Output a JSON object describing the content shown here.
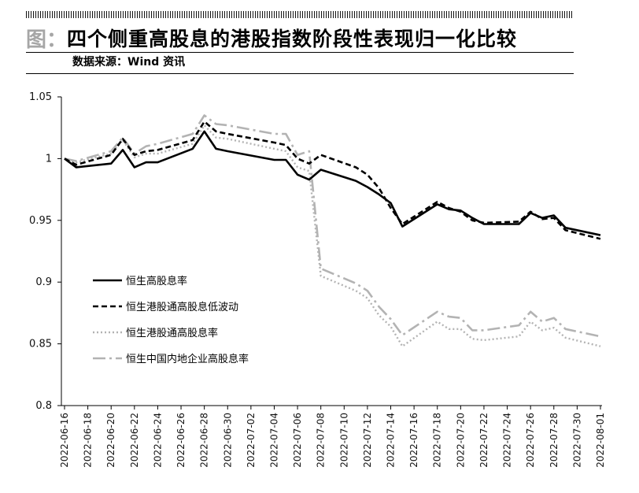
{
  "header": {
    "title_prefix": "图：",
    "title": "四个侧重高股息的港股指数阶段性表现归一化比较",
    "source": "数据来源：Wind 资讯"
  },
  "chart_data": {
    "type": "line",
    "title": "四个侧重高股息的港股指数阶段性表现归一化比较",
    "xlabel": "",
    "ylabel": "",
    "ylim": [
      0.8,
      1.05
    ],
    "yticks": [
      "1.05",
      "1",
      "0.95",
      "0.9",
      "0.85",
      "0.8"
    ],
    "ytick_values": [
      1.05,
      1.0,
      0.95,
      0.9,
      0.85,
      0.8
    ],
    "xticks": [
      "2022-06-16",
      "2022-06-18",
      "2022-06-20",
      "2022-06-22",
      "2022-06-24",
      "2022-06-26",
      "2022-06-28",
      "2022-06-30",
      "2022-07-02",
      "2022-07-04",
      "2022-07-06",
      "2022-07-08",
      "2022-07-10",
      "2022-07-12",
      "2022-07-14",
      "2022-07-16",
      "2022-07-18",
      "2022-07-20",
      "2022-07-22",
      "2022-07-24",
      "2022-07-26",
      "2022-07-28",
      "2022-07-30",
      "2022-08-01"
    ],
    "grid": false,
    "legend_position": "center-left",
    "series": [
      {
        "name": "恒生高股息率",
        "style": "solid",
        "color": "#000000",
        "points": [
          [
            "2022-06-16",
            1.0
          ],
          [
            "2022-06-17",
            0.993
          ],
          [
            "2022-06-20",
            0.996
          ],
          [
            "2022-06-21",
            1.007
          ],
          [
            "2022-06-22",
            0.993
          ],
          [
            "2022-06-23",
            0.997
          ],
          [
            "2022-06-24",
            0.997
          ],
          [
            "2022-06-27",
            1.008
          ],
          [
            "2022-06-28",
            1.022
          ],
          [
            "2022-06-29",
            1.008
          ],
          [
            "2022-06-30",
            1.006
          ],
          [
            "2022-07-04",
            0.999
          ],
          [
            "2022-07-05",
            0.999
          ],
          [
            "2022-07-06",
            0.987
          ],
          [
            "2022-07-07",
            0.983
          ],
          [
            "2022-07-08",
            0.991
          ],
          [
            "2022-07-11",
            0.982
          ],
          [
            "2022-07-12",
            0.977
          ],
          [
            "2022-07-13",
            0.971
          ],
          [
            "2022-07-14",
            0.964
          ],
          [
            "2022-07-15",
            0.945
          ],
          [
            "2022-07-18",
            0.963
          ],
          [
            "2022-07-19",
            0.959
          ],
          [
            "2022-07-20",
            0.958
          ],
          [
            "2022-07-21",
            0.952
          ],
          [
            "2022-07-22",
            0.947
          ],
          [
            "2022-07-25",
            0.947
          ],
          [
            "2022-07-26",
            0.956
          ],
          [
            "2022-07-27",
            0.952
          ],
          [
            "2022-07-28",
            0.954
          ],
          [
            "2022-07-29",
            0.944
          ],
          [
            "2022-08-01",
            0.938
          ]
        ]
      },
      {
        "name": "恒生港股通高股息低波动",
        "style": "dashed",
        "color": "#000000",
        "points": [
          [
            "2022-06-16",
            1.0
          ],
          [
            "2022-06-17",
            0.995
          ],
          [
            "2022-06-20",
            1.003
          ],
          [
            "2022-06-21",
            1.016
          ],
          [
            "2022-06-22",
            1.003
          ],
          [
            "2022-06-23",
            1.006
          ],
          [
            "2022-06-24",
            1.007
          ],
          [
            "2022-06-27",
            1.015
          ],
          [
            "2022-06-28",
            1.03
          ],
          [
            "2022-06-29",
            1.022
          ],
          [
            "2022-06-30",
            1.02
          ],
          [
            "2022-07-04",
            1.013
          ],
          [
            "2022-07-05",
            1.011
          ],
          [
            "2022-07-06",
            1.0
          ],
          [
            "2022-07-07",
            0.996
          ],
          [
            "2022-07-08",
            1.003
          ],
          [
            "2022-07-11",
            0.993
          ],
          [
            "2022-07-12",
            0.987
          ],
          [
            "2022-07-13",
            0.976
          ],
          [
            "2022-07-14",
            0.96
          ],
          [
            "2022-07-15",
            0.947
          ],
          [
            "2022-07-18",
            0.965
          ],
          [
            "2022-07-19",
            0.96
          ],
          [
            "2022-07-20",
            0.957
          ],
          [
            "2022-07-21",
            0.95
          ],
          [
            "2022-07-22",
            0.948
          ],
          [
            "2022-07-25",
            0.949
          ],
          [
            "2022-07-26",
            0.957
          ],
          [
            "2022-07-27",
            0.951
          ],
          [
            "2022-07-28",
            0.952
          ],
          [
            "2022-07-29",
            0.942
          ],
          [
            "2022-08-01",
            0.935
          ]
        ]
      },
      {
        "name": "恒生港股通高股息率",
        "style": "dotted",
        "color": "#b3b3b3",
        "points": [
          [
            "2022-06-16",
            1.0
          ],
          [
            "2022-06-17",
            0.997
          ],
          [
            "2022-06-20",
            1.004
          ],
          [
            "2022-06-21",
            1.015
          ],
          [
            "2022-06-22",
            1.001
          ],
          [
            "2022-06-23",
            1.004
          ],
          [
            "2022-06-24",
            1.004
          ],
          [
            "2022-06-27",
            1.012
          ],
          [
            "2022-06-28",
            1.027
          ],
          [
            "2022-06-29",
            1.017
          ],
          [
            "2022-06-30",
            1.016
          ],
          [
            "2022-07-04",
            1.008
          ],
          [
            "2022-07-05",
            1.006
          ],
          [
            "2022-07-06",
            0.993
          ],
          [
            "2022-07-07",
            0.99
          ],
          [
            "2022-07-08",
            0.905
          ],
          [
            "2022-07-11",
            0.893
          ],
          [
            "2022-07-12",
            0.887
          ],
          [
            "2022-07-13",
            0.873
          ],
          [
            "2022-07-14",
            0.864
          ],
          [
            "2022-07-15",
            0.848
          ],
          [
            "2022-07-18",
            0.868
          ],
          [
            "2022-07-19",
            0.862
          ],
          [
            "2022-07-20",
            0.862
          ],
          [
            "2022-07-21",
            0.854
          ],
          [
            "2022-07-22",
            0.853
          ],
          [
            "2022-07-25",
            0.856
          ],
          [
            "2022-07-26",
            0.868
          ],
          [
            "2022-07-27",
            0.861
          ],
          [
            "2022-07-28",
            0.863
          ],
          [
            "2022-07-29",
            0.855
          ],
          [
            "2022-08-01",
            0.848
          ]
        ]
      },
      {
        "name": "恒生中国内地企业高股息率",
        "style": "dashdot",
        "color": "#b3b3b3",
        "points": [
          [
            "2022-06-16",
            1.0
          ],
          [
            "2022-06-17",
            0.998
          ],
          [
            "2022-06-20",
            1.006
          ],
          [
            "2022-06-21",
            1.017
          ],
          [
            "2022-06-22",
            1.004
          ],
          [
            "2022-06-23",
            1.01
          ],
          [
            "2022-06-24",
            1.012
          ],
          [
            "2022-06-27",
            1.02
          ],
          [
            "2022-06-28",
            1.035
          ],
          [
            "2022-06-29",
            1.028
          ],
          [
            "2022-06-30",
            1.027
          ],
          [
            "2022-07-04",
            1.02
          ],
          [
            "2022-07-05",
            1.02
          ],
          [
            "2022-07-06",
            1.003
          ],
          [
            "2022-07-07",
            1.006
          ],
          [
            "2022-07-08",
            0.911
          ],
          [
            "2022-07-11",
            0.899
          ],
          [
            "2022-07-12",
            0.893
          ],
          [
            "2022-07-13",
            0.88
          ],
          [
            "2022-07-14",
            0.87
          ],
          [
            "2022-07-15",
            0.857
          ],
          [
            "2022-07-18",
            0.876
          ],
          [
            "2022-07-19",
            0.872
          ],
          [
            "2022-07-20",
            0.871
          ],
          [
            "2022-07-21",
            0.861
          ],
          [
            "2022-07-22",
            0.861
          ],
          [
            "2022-07-25",
            0.865
          ],
          [
            "2022-07-26",
            0.876
          ],
          [
            "2022-07-27",
            0.868
          ],
          [
            "2022-07-28",
            0.871
          ],
          [
            "2022-07-29",
            0.862
          ],
          [
            "2022-08-01",
            0.856
          ]
        ]
      }
    ]
  }
}
